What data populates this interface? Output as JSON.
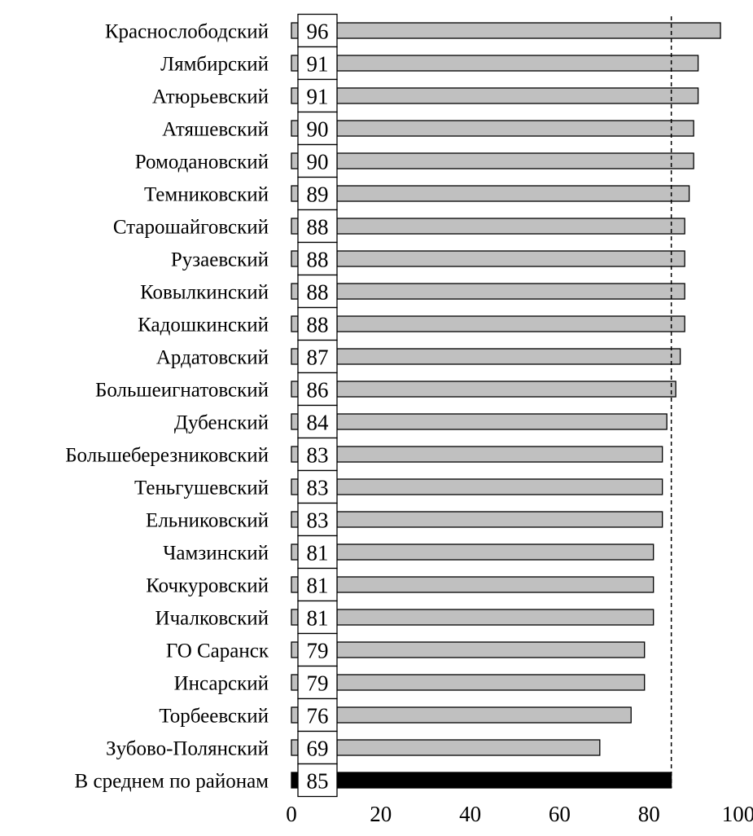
{
  "chart_data": {
    "type": "bar",
    "orientation": "horizontal",
    "categories": [
      "Краснослободский",
      "Лямбирский",
      "Атюрьевский",
      "Атяшевский",
      "Ромодановский",
      "Темниковский",
      "Старошайговский",
      "Рузаевский",
      "Ковылкинский",
      "Кадошкинский",
      "Ардатовский",
      "Большеигнатовский",
      "Дубенский",
      "Большеберезниковский",
      "Теньгушевский",
      "Ельниковский",
      "Чамзинский",
      "Кочкуровский",
      "Ичалковский",
      "ГО Саранск",
      "Инсарский",
      "Торбеевский",
      "Зубово-Полянский",
      "В среднем по районам"
    ],
    "values": [
      96,
      91,
      91,
      90,
      90,
      89,
      88,
      88,
      88,
      88,
      87,
      86,
      84,
      83,
      83,
      83,
      81,
      81,
      81,
      79,
      79,
      76,
      69,
      85
    ],
    "value_labels": [
      "96",
      "91",
      "91",
      "90",
      "90",
      "89",
      "88",
      "88",
      "88",
      "88",
      "87",
      "86",
      "84",
      "83",
      "83",
      "83",
      "81",
      "81",
      "81",
      "79",
      "79",
      "76",
      "69",
      "85"
    ],
    "highlight_index": 23,
    "reference_line": {
      "value": 85,
      "style": "dashed"
    },
    "xlim": [
      0,
      100
    ],
    "xticks": [
      0,
      20,
      40,
      60,
      80,
      100
    ],
    "xtick_labels": [
      "0",
      "20",
      "40",
      "60",
      "80",
      "100"
    ],
    "colors": {
      "bar": "#c0c0c0",
      "highlight_bar": "#000000",
      "outline": "#000000"
    },
    "grid": false,
    "legend": "none"
  }
}
